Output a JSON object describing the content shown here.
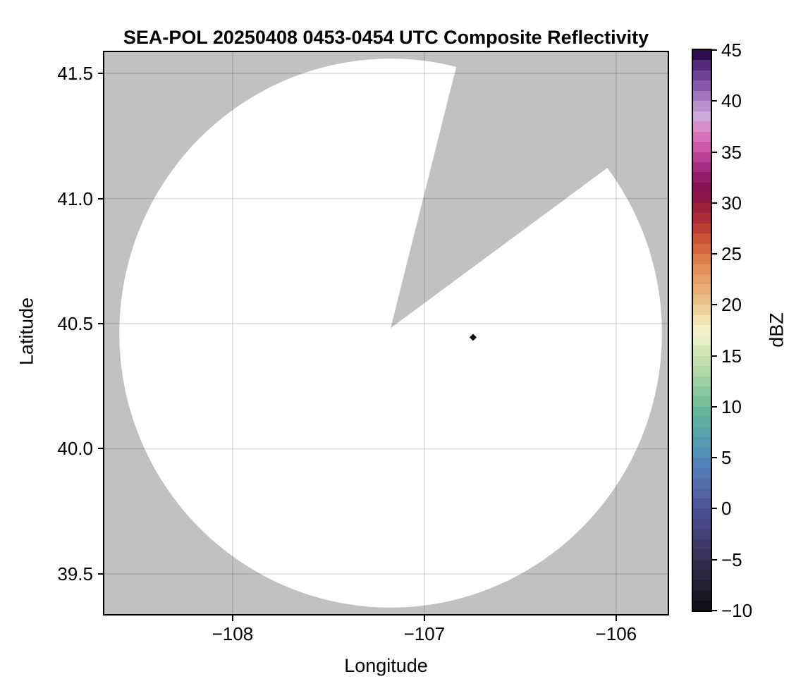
{
  "title": "SEA-POL 20250408 0453-0454 UTC Composite Reflectivity",
  "chart_data": {
    "type": "heatmap",
    "subtype": "radar-composite-reflectivity-ppi",
    "title": "SEA-POL 20250408 0453-0454 UTC Composite Reflectivity",
    "xlabel": "Longitude",
    "ylabel": "Latitude",
    "xlim": [
      -108.669,
      -105.731
    ],
    "ylim": [
      39.339,
      41.585
    ],
    "grid": true,
    "x_ticks": [
      -108,
      -107,
      -106
    ],
    "x_tick_labels": [
      "−108",
      "−107",
      "−106"
    ],
    "y_ticks": [
      41.5,
      41.0,
      40.5,
      40.0,
      39.5
    ],
    "y_tick_labels": [
      "41.5",
      "41.0",
      "40.5",
      "40.0",
      "39.5"
    ],
    "colorbar": {
      "label": "dBZ",
      "range": [
        -10,
        45
      ],
      "ticks": [
        45,
        40,
        35,
        30,
        25,
        20,
        15,
        10,
        5,
        0,
        -5,
        -10
      ],
      "tick_labels": [
        "45",
        "40",
        "35",
        "30",
        "25",
        "20",
        "15",
        "10",
        "5",
        "0",
        "−5",
        "−10"
      ],
      "band_step_dbz": 1,
      "colormap_anchors": [
        [
          -10,
          "#060608"
        ],
        [
          -8,
          "#1b1826"
        ],
        [
          -6,
          "#2b2540"
        ],
        [
          -4,
          "#3b335c"
        ],
        [
          -2,
          "#444079"
        ],
        [
          0,
          "#4c4d91"
        ],
        [
          2,
          "#5263a6"
        ],
        [
          4,
          "#5379b4"
        ],
        [
          6,
          "#548fb9"
        ],
        [
          8,
          "#58a5ab"
        ],
        [
          10,
          "#65b79a"
        ],
        [
          12,
          "#8ac89e"
        ],
        [
          14,
          "#b2d9a6"
        ],
        [
          16,
          "#d5e7b3"
        ],
        [
          17,
          "#e9efc4"
        ],
        [
          18,
          "#f4eecb"
        ],
        [
          19,
          "#f3e1b2"
        ],
        [
          20,
          "#efcf9a"
        ],
        [
          22,
          "#e9af76"
        ],
        [
          24,
          "#e28f58"
        ],
        [
          25,
          "#dd7c49"
        ],
        [
          26,
          "#d5673e"
        ],
        [
          27,
          "#ca5237"
        ],
        [
          28,
          "#bc3e34"
        ],
        [
          29,
          "#ac2d38"
        ],
        [
          30,
          "#9c203e"
        ],
        [
          31,
          "#8f1647"
        ],
        [
          32,
          "#8a1254"
        ],
        [
          33,
          "#951c68"
        ],
        [
          34,
          "#a72b80"
        ],
        [
          35,
          "#bb4093"
        ],
        [
          36,
          "#cb58a9"
        ],
        [
          37,
          "#d572bb"
        ],
        [
          38,
          "#d88ecb"
        ],
        [
          38.5,
          "#d9a2d6"
        ],
        [
          39,
          "#cfa8dc"
        ],
        [
          40,
          "#b992cf"
        ],
        [
          41,
          "#a375bf"
        ],
        [
          42,
          "#8a58ab"
        ],
        [
          43,
          "#703f96"
        ],
        [
          44,
          "#552a7e"
        ],
        [
          45,
          "#2f0c4d"
        ]
      ]
    },
    "radar_coverage": {
      "center_lon": -107.176,
      "center_lat": 40.482,
      "disk_center_lon": -107.176,
      "disk_center_lat": 40.462,
      "radius_lon_deg": 1.415,
      "radius_lat_deg": 1.097,
      "blocked_sector": {
        "apex_lon": -107.176,
        "apex_lat": 40.482,
        "edge1_end": {
          "lon": -106.824,
          "lat": 41.556
        },
        "edge2_end": {
          "lon": -106.059,
          "lat": 41.115
        }
      }
    },
    "points": [
      {
        "lon": -106.746,
        "lat": 40.445,
        "approx_dbz": 45,
        "marker": "diamond"
      }
    ]
  },
  "colors": {
    "outside_coverage": "#c1c1c1",
    "coverage_fill": "#ffffff",
    "gridline": "rgba(0,0,0,0.13)",
    "frame": "#000000",
    "echo_point": "#0b0b10"
  }
}
